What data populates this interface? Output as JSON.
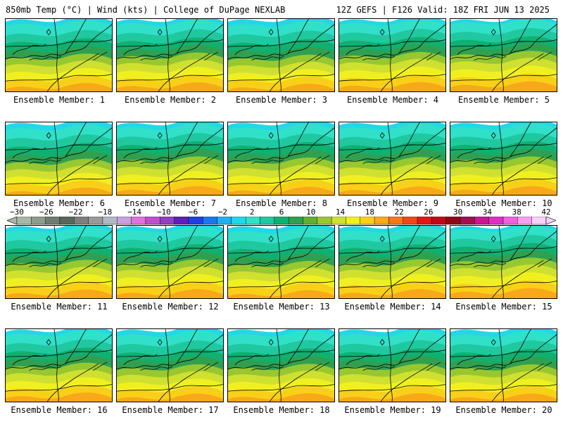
{
  "header": {
    "title_left": "850mb Temp (°C) | Wind (kts) | College of DuPage NEXLAB",
    "title_right": "12Z GEFS | F126 Valid: 18Z FRI JUN 13 2025"
  },
  "colorbar": {
    "ticks": [
      "-30",
      "-26",
      "-22",
      "-18",
      "-14",
      "-10",
      "-6",
      "-2",
      "2",
      "6",
      "10",
      "14",
      "18",
      "22",
      "26",
      "30",
      "34",
      "38",
      "42"
    ],
    "colors": [
      "#a8b8a8",
      "#8c9c8c",
      "#707c70",
      "#5a665a",
      "#7e7e7e",
      "#9a9a9a",
      "#b0b8c8",
      "#c8a0e0",
      "#e070e0",
      "#c050c8",
      "#9040c0",
      "#6020b8",
      "#2040e0",
      "#1878f0",
      "#20b0f0",
      "#20d8e8",
      "#30e0c8",
      "#20c8a0",
      "#10b070",
      "#30a050",
      "#60b030",
      "#98c830",
      "#d0e030",
      "#f0f020",
      "#f8d018",
      "#f8a818",
      "#f87818",
      "#f04818",
      "#e01818",
      "#c00818",
      "#900818",
      "#a01050",
      "#c81890",
      "#e030c0",
      "#f060e0",
      "#f8a0f0",
      "#f8d0f8"
    ]
  },
  "panels": [
    {
      "label": "Ensemble Member: 1",
      "warmth": 0.45
    },
    {
      "label": "Ensemble Member: 2",
      "warmth": 0.55
    },
    {
      "label": "Ensemble Member: 3",
      "warmth": 0.35
    },
    {
      "label": "Ensemble Member: 4",
      "warmth": 0.6
    },
    {
      "label": "Ensemble Member: 5",
      "warmth": 0.7
    },
    {
      "label": "Ensemble Member: 6",
      "warmth": 0.3
    },
    {
      "label": "Ensemble Member: 7",
      "warmth": 0.5
    },
    {
      "label": "Ensemble Member: 8",
      "warmth": 0.4
    },
    {
      "label": "Ensemble Member: 9",
      "warmth": 0.45
    },
    {
      "label": "Ensemble Member: 10",
      "warmth": 0.5
    },
    {
      "label": "Ensemble Member: 11",
      "warmth": 0.5
    },
    {
      "label": "Ensemble Member: 12",
      "warmth": 0.55
    },
    {
      "label": "Ensemble Member: 13",
      "warmth": 0.4
    },
    {
      "label": "Ensemble Member: 14",
      "warmth": 0.55
    },
    {
      "label": "Ensemble Member: 15",
      "warmth": 0.7
    },
    {
      "label": "Ensemble Member: 16",
      "warmth": 0.55
    },
    {
      "label": "Ensemble Member: 17",
      "warmth": 0.4
    },
    {
      "label": "Ensemble Member: 18",
      "warmth": 0.45
    },
    {
      "label": "Ensemble Member: 19",
      "warmth": 0.45
    },
    {
      "label": "Ensemble Member: 20",
      "warmth": 0.4
    }
  ]
}
